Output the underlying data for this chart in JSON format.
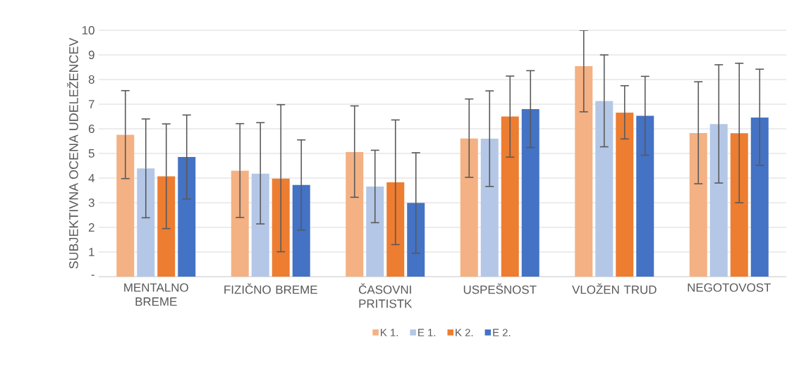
{
  "chart_data": {
    "type": "bar",
    "ylabel": "SUBJEKTIVNA OCENA UDELEŽENCEV",
    "categories": [
      "MENTALNO BREME",
      "FIZIČNO BREME",
      "ČASOVNI PRITISTK",
      "USPEŠNOST",
      "VLOŽEN TRUD",
      "NEGOTOVOST"
    ],
    "series": [
      {
        "name": "K 1.",
        "color": "#f4b183",
        "values": [
          5.76,
          4.3,
          5.06,
          5.61,
          8.54,
          5.83
        ],
        "errors": [
          [
            3.98,
            7.55
          ],
          [
            2.4,
            6.21
          ],
          [
            3.22,
            6.93
          ],
          [
            4.03,
            7.21
          ],
          [
            6.69,
            10
          ],
          [
            3.77,
            7.91
          ]
        ]
      },
      {
        "name": "E 1.",
        "color": "#b4c7e7",
        "values": [
          4.39,
          4.18,
          3.66,
          5.6,
          7.13,
          6.19
        ],
        "errors": [
          [
            2.39,
            6.4
          ],
          [
            2.14,
            6.25
          ],
          [
            2.19,
            5.13
          ],
          [
            3.66,
            7.54
          ],
          [
            5.27,
            9.0
          ],
          [
            3.8,
            8.6
          ]
        ]
      },
      {
        "name": "K 2.",
        "color": "#ed7d31",
        "values": [
          4.07,
          3.98,
          3.83,
          6.5,
          6.66,
          5.82
        ],
        "errors": [
          [
            1.95,
            6.2
          ],
          [
            1.01,
            6.98
          ],
          [
            1.3,
            6.36
          ],
          [
            4.85,
            8.14
          ],
          [
            5.59,
            7.75
          ],
          [
            3.0,
            8.66
          ]
        ]
      },
      {
        "name": "E 2.",
        "color": "#4472c4",
        "values": [
          4.86,
          3.72,
          2.99,
          6.8,
          6.53,
          6.46
        ],
        "errors": [
          [
            3.15,
            6.56
          ],
          [
            1.89,
            5.55
          ],
          [
            0.95,
            5.03
          ],
          [
            5.24,
            8.36
          ],
          [
            4.93,
            8.13
          ],
          [
            4.52,
            8.42
          ]
        ]
      }
    ],
    "ylim": [
      0,
      10
    ],
    "yticks": [
      {
        "value": 0,
        "label": "-"
      },
      1,
      2,
      3,
      4,
      5,
      6,
      7,
      8,
      9,
      10
    ],
    "grid": "y",
    "legend": "bottom"
  }
}
